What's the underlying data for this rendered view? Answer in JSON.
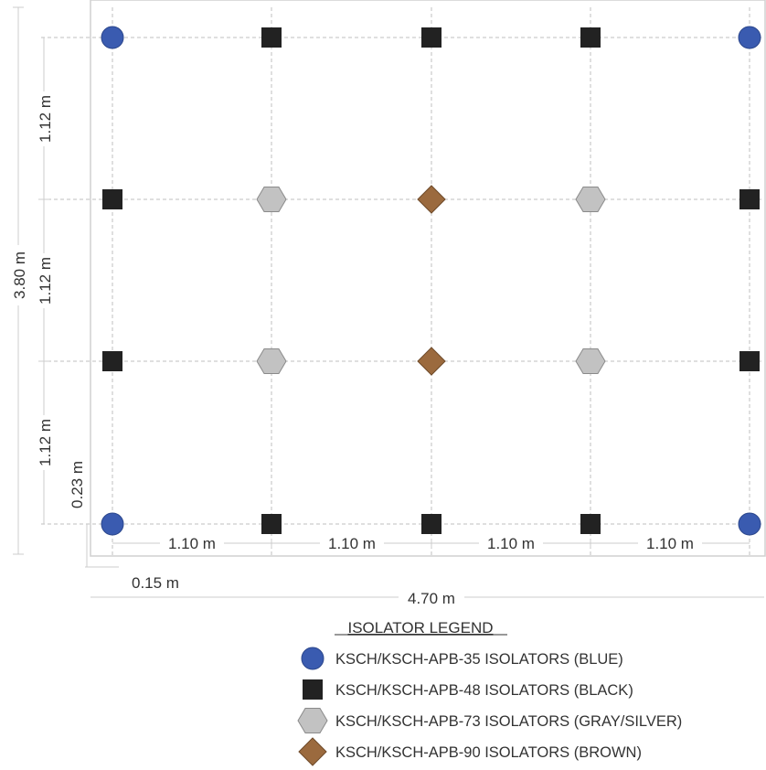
{
  "dimensions": {
    "vertical_spacing": "1.12 m",
    "overall_height": "3.80 m",
    "bottom_offset": "0.23 m",
    "horizontal_spacing": "1.10 m",
    "left_offset": "0.15 m",
    "overall_width": "4.70 m"
  },
  "legend": {
    "title": "ISOLATOR LEGEND",
    "items": [
      {
        "label": "KSCH/KSCH-APB-35 ISOLATORS (BLUE)",
        "shape": "circle",
        "color": "#3a5bb0",
        "icon": "blue-circle-icon"
      },
      {
        "label": "KSCH/KSCH-APB-48 ISOLATORS (BLACK)",
        "shape": "square",
        "color": "#222222",
        "icon": "black-square-icon"
      },
      {
        "label": "KSCH/KSCH-APB-73 ISOLATORS (GRAY/SILVER)",
        "shape": "hexagon",
        "color": "#c2c2c2",
        "icon": "gray-hexagon-icon"
      },
      {
        "label": "KSCH/KSCH-APB-90 ISOLATORS (BROWN)",
        "shape": "diamond",
        "color": "#9b6a3e",
        "icon": "brown-diamond-icon"
      }
    ]
  },
  "isolator_grid": [
    [
      "circle",
      "square",
      "square",
      "square",
      "circle"
    ],
    [
      "square",
      "hexagon",
      "diamond",
      "hexagon",
      "square"
    ],
    [
      "square",
      "hexagon",
      "diamond",
      "hexagon",
      "square"
    ],
    [
      "circle",
      "square",
      "square",
      "square",
      "circle"
    ]
  ]
}
